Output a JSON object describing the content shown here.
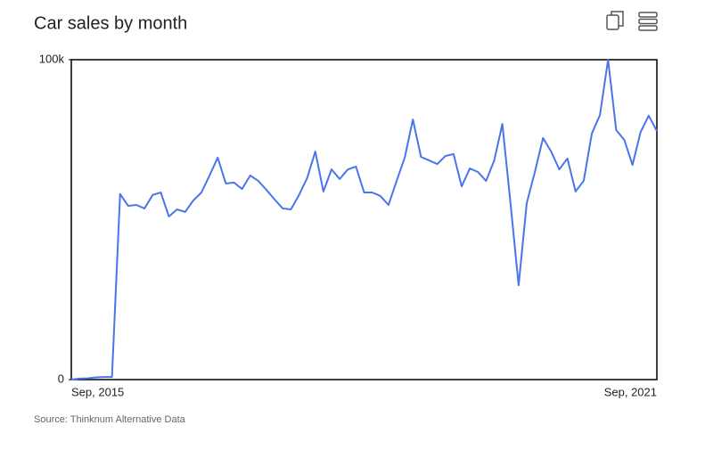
{
  "chart_data": {
    "type": "line",
    "title": "Car sales by month",
    "source": "Source: Thinknum Alternative Data",
    "categories": [
      "Sep, 2015",
      null,
      null,
      null,
      null,
      null,
      null,
      null,
      null,
      null,
      null,
      null,
      null,
      null,
      null,
      null,
      null,
      null,
      null,
      null,
      null,
      null,
      null,
      null,
      null,
      null,
      null,
      null,
      null,
      null,
      null,
      null,
      null,
      null,
      null,
      null,
      null,
      null,
      null,
      null,
      null,
      null,
      null,
      null,
      null,
      null,
      null,
      null,
      null,
      null,
      null,
      null,
      null,
      null,
      null,
      null,
      null,
      null,
      null,
      null,
      null,
      null,
      null,
      null,
      null,
      null,
      null,
      null,
      null,
      null,
      null,
      null,
      "Sep, 2021"
    ],
    "series": [
      {
        "color": "#4a74ea",
        "values": [
          0,
          300,
          400,
          700,
          800,
          800,
          58000,
          54300,
          54600,
          53500,
          57700,
          58500,
          51000,
          53200,
          52400,
          56000,
          58500,
          63800,
          69400,
          61300,
          61600,
          59600,
          63800,
          62100,
          59300,
          56300,
          53500,
          53200,
          57700,
          63000,
          71300,
          58800,
          65700,
          62700,
          65700,
          66600,
          58500,
          58500,
          57400,
          54600,
          62100,
          69400,
          81300,
          69600,
          68500,
          67400,
          69900,
          70500,
          60400,
          66000,
          64900,
          62100,
          68500,
          79900,
          55200,
          29500,
          55200,
          64900,
          75500,
          71300,
          65700,
          69100,
          58800,
          62100,
          76900,
          82700,
          100000,
          78000,
          74900,
          67100,
          77400,
          82500,
          77700
        ]
      }
    ],
    "ylim": [
      0,
      100000
    ],
    "yticks": [
      0,
      {
        "value": 100000,
        "label": "100k"
      }
    ]
  }
}
